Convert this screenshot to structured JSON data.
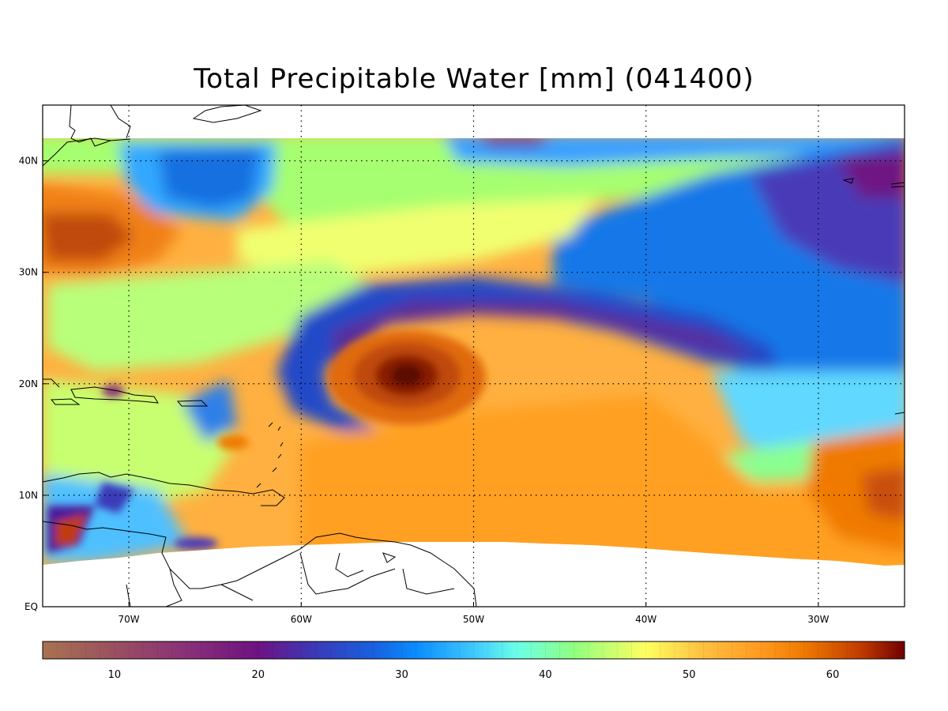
{
  "title": "Total Precipitable Water [mm]  (041400)",
  "map": {
    "lon_range": [
      -75,
      -25
    ],
    "lat_range": [
      0,
      45
    ],
    "lon_ticks": [
      {
        "value": -70,
        "label": "70W"
      },
      {
        "value": -60,
        "label": "60W"
      },
      {
        "value": -50,
        "label": "50W"
      },
      {
        "value": -40,
        "label": "40W"
      },
      {
        "value": -30,
        "label": "30W"
      }
    ],
    "lat_ticks": [
      {
        "value": 0,
        "label": "EQ"
      },
      {
        "value": 10,
        "label": "10N"
      },
      {
        "value": 20,
        "label": "20N"
      },
      {
        "value": 30,
        "label": "30N"
      },
      {
        "value": 40,
        "label": "40N"
      }
    ],
    "grid": "dotted",
    "features": {
      "storm_center": {
        "lon": -53.5,
        "lat": 20.5,
        "name": "tropical-cyclone-moisture-core"
      }
    }
  },
  "colorbar": {
    "range": [
      5,
      65
    ],
    "ticks": [
      {
        "value": 10,
        "label": "10"
      },
      {
        "value": 20,
        "label": "20"
      },
      {
        "value": 30,
        "label": "30"
      },
      {
        "value": 40,
        "label": "40"
      },
      {
        "value": 50,
        "label": "50"
      },
      {
        "value": 60,
        "label": "60"
      }
    ],
    "stops": [
      {
        "value": 5,
        "color": "#a8734f"
      },
      {
        "value": 10,
        "color": "#9a5060"
      },
      {
        "value": 15,
        "color": "#8a3078"
      },
      {
        "value": 20,
        "color": "#6e1282"
      },
      {
        "value": 24,
        "color": "#3a3ab8"
      },
      {
        "value": 28,
        "color": "#1860e0"
      },
      {
        "value": 31,
        "color": "#0a8cff"
      },
      {
        "value": 35,
        "color": "#40c8ff"
      },
      {
        "value": 38,
        "color": "#6affe8"
      },
      {
        "value": 42,
        "color": "#90ff80"
      },
      {
        "value": 47,
        "color": "#ffff60"
      },
      {
        "value": 51,
        "color": "#ffc040"
      },
      {
        "value": 55,
        "color": "#ff9a20"
      },
      {
        "value": 58,
        "color": "#f07a00"
      },
      {
        "value": 62,
        "color": "#c03a00"
      },
      {
        "value": 65,
        "color": "#700000"
      }
    ]
  }
}
